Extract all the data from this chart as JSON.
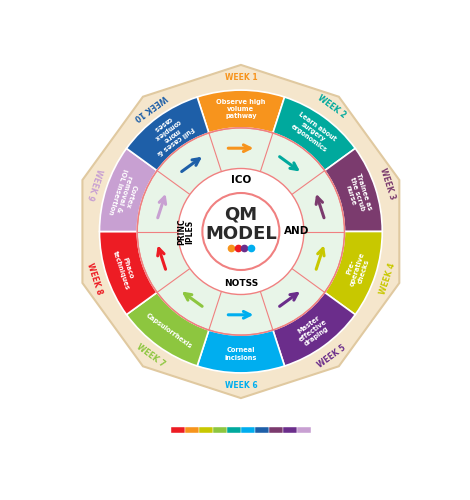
{
  "weeks": [
    "WEEK 1",
    "WEEK 2",
    "WEEK 3",
    "WEEK 4",
    "WEEK 5",
    "WEEK 6",
    "WEEK 7",
    "WEEK 8",
    "WEEK 9",
    "WEEK 10"
  ],
  "week_labels": [
    "Observe high\nvolume\npathway",
    "Learn about\nsurgery\nergonomics",
    "Trainee as\nthe scrub\nnurse",
    "Pre-\noperative\nchecks",
    "Master\neffective\ndraping",
    "Corneal\nincisions",
    "Capsulorrhexis",
    "Phaco\ntechniques",
    "Cortex\nremoval &\nIOL insertion",
    "Full cases &\nmore\ncomplex\ncases"
  ],
  "week_colors": [
    "#F7941D",
    "#00A99D",
    "#7B3B6E",
    "#C8C800",
    "#6B2D8B",
    "#00AEEF",
    "#8DC63F",
    "#ED1C24",
    "#C8A0D2",
    "#1E5FA8"
  ],
  "week_text_colors": [
    "#F7941D",
    "#00A99D",
    "#7B3B6E",
    "#C8C800",
    "#6B2D8B",
    "#00AEEF",
    "#8DC63F",
    "#ED1C24",
    "#C8A0D2",
    "#1E5FA8"
  ],
  "arrow_colors": [
    "#F7941D",
    "#00A99D",
    "#7B3B6E",
    "#C8C800",
    "#6B2D8B",
    "#00AEEF",
    "#8DC63F",
    "#ED1C24",
    "#C8A0D2",
    "#1E5FA8"
  ],
  "arrow_directions": [
    1,
    1,
    -1,
    -1,
    -1,
    -1,
    1,
    1,
    1,
    1
  ],
  "outer_ring_color": "#F5E6CC",
  "inner_ring_color": "#E8F5E8",
  "center_ring_border": "#F08080",
  "dots_colors": [
    "#F7941D",
    "#ED1C24",
    "#6B2D8B",
    "#00AEEF"
  ],
  "colorbar_colors": [
    "#ED1C24",
    "#F7941D",
    "#C8C800",
    "#8DC63F",
    "#00A99D",
    "#00AEEF",
    "#1E5FA8",
    "#7B3B6E",
    "#6B2D8B",
    "#C8A0D2"
  ]
}
